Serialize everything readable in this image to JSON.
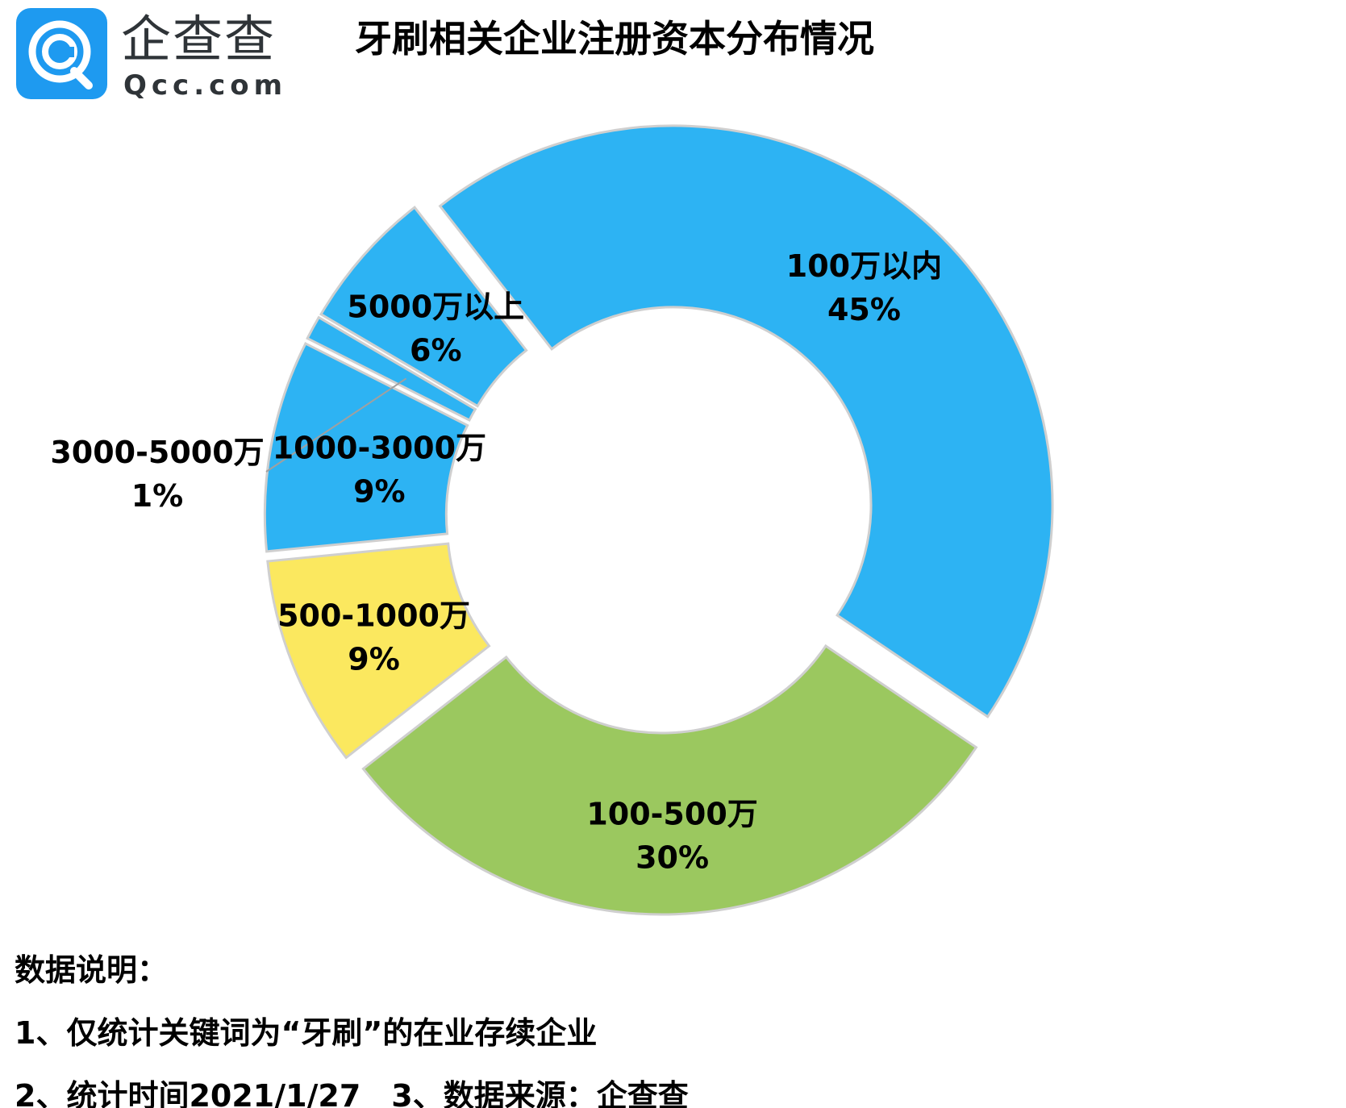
{
  "logo": {
    "brand_cn": "企查查",
    "brand_en": "Qcc.com",
    "icon": "qcc-logo-icon"
  },
  "chart_data": {
    "type": "pie",
    "title": "牙刷相关企业注册资本分布情况",
    "donut": true,
    "categories": [
      "100万以内",
      "100-500万",
      "500-1000万",
      "1000-3000万",
      "3000-5000万",
      "5000万以上"
    ],
    "values": [
      45,
      30,
      9,
      9,
      1,
      6
    ],
    "value_labels": [
      "45%",
      "30%",
      "9%",
      "9%",
      "1%",
      "6%"
    ],
    "colors": [
      "#2db3f3",
      "#9bc85f",
      "#fbe85f",
      "#2db3f3",
      "#2db3f3",
      "#2db3f3"
    ],
    "legend": "none"
  },
  "notes": {
    "heading": "数据说明：",
    "line1": "1、仅统计关键词为“牙刷”的在业存续企业",
    "line2": "2、统计时间2021/1/27　3、数据来源：企查查"
  }
}
